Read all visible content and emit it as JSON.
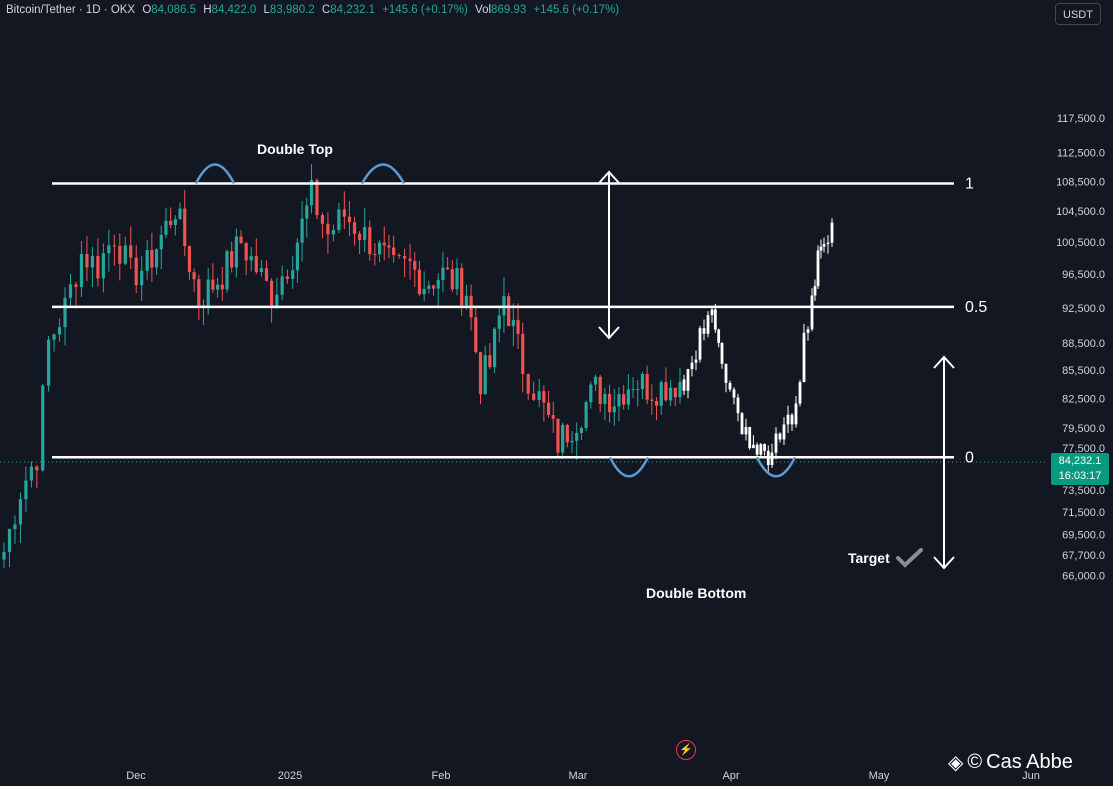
{
  "header": {
    "symbol": "Bitcoin/Tether · 1D · OKX",
    "open_label": "O",
    "open_value": "84,086.5",
    "high_label": "H",
    "high_value": "84,422.0",
    "low_label": "L",
    "low_value": "83,980.2",
    "close_label": "C",
    "close_value": "84,232.1",
    "change": "+145.6 (+0.17%)",
    "vol_label": "Vol",
    "vol_value": "869.93",
    "vol_change": "+145.6 (+0.17%)"
  },
  "currency_button": "USDT",
  "last_price": {
    "value": "84,232.1",
    "countdown": "16:03:17"
  },
  "watermark": {
    "text": "Cas Abbe"
  },
  "colors": {
    "background": "#131722",
    "up": "#26a69a",
    "down": "#ef5350",
    "projection": "#ffffff",
    "annotation": "#ffffff",
    "arc": "#5b9bd5"
  },
  "chart_data": {
    "type": "candlestick",
    "y_scale": "log",
    "ylim": [
      66000,
      121000
    ],
    "x_axis_ticks": [
      "Dec",
      "2025",
      "Feb",
      "Mar",
      "Apr",
      "May",
      "Jun"
    ],
    "y_axis_ticks": [
      117500,
      112500,
      108500,
      104500,
      100500,
      96500,
      92500,
      88500,
      85500,
      82500,
      79500,
      77500,
      75500,
      73500,
      71500,
      69500,
      67700,
      66000
    ],
    "y_axis_labels": [
      "117,500.0",
      "112,500.0",
      "108,500.0",
      "104,500.0",
      "100,500.0",
      "96,500.0",
      "92,500.0",
      "88,500.0",
      "85,500.0",
      "82,500.0",
      "79,500.0",
      "77,500.0",
      "75,500.0",
      "73,500.0",
      "71,500.0",
      "69,500.0",
      "67,700.0",
      "66,000.0"
    ],
    "current_price": 84232.1,
    "levels": [
      {
        "label": "1",
        "price": 108200
      },
      {
        "label": "0.5",
        "price": 92600
      },
      {
        "label": "0",
        "price": 76600
      }
    ],
    "annotations": {
      "double_top": "Double Top",
      "double_bottom": "Double Bottom",
      "target": "Target"
    },
    "anchors": [
      {
        "price": 68000
      },
      {
        "price": 73500
      },
      {
        "price": 76800
      },
      {
        "price": 88500
      },
      {
        "price": 92500
      },
      {
        "price": 99000
      },
      {
        "price": 97500
      },
      {
        "price": 101500
      },
      {
        "price": 96500
      },
      {
        "price": 97500
      },
      {
        "price": 105000
      },
      {
        "price": 93500
      },
      {
        "price": 96500
      },
      {
        "price": 100500
      },
      {
        "price": 94000
      },
      {
        "price": 99000
      },
      {
        "price": 106500
      },
      {
        "price": 101500
      },
      {
        "price": 104000
      },
      {
        "price": 100000
      },
      {
        "price": 97000
      },
      {
        "price": 97500
      },
      {
        "price": 95500
      },
      {
        "price": 96500
      },
      {
        "price": 94500
      },
      {
        "price": 84500
      },
      {
        "price": 86000
      },
      {
        "price": 94000
      },
      {
        "price": 86000
      },
      {
        "price": 82500
      },
      {
        "price": 78000
      },
      {
        "price": 80500
      },
      {
        "price": 83500
      },
      {
        "price": 82500
      },
      {
        "price": 84500
      },
      {
        "price": 83500
      },
      {
        "price": 84232
      }
    ],
    "projection": [
      {
        "price": 84500
      },
      {
        "price": 86500
      },
      {
        "price": 89000
      },
      {
        "price": 91500
      },
      {
        "price": 86500
      },
      {
        "price": 81500
      },
      {
        "price": 79000
      },
      {
        "price": 76600
      },
      {
        "price": 79500
      },
      {
        "price": 80500
      },
      {
        "price": 84500
      },
      {
        "price": 88500
      },
      {
        "price": 92600
      },
      {
        "price": 98500
      },
      {
        "price": 99500
      },
      {
        "price": 104200
      }
    ]
  }
}
